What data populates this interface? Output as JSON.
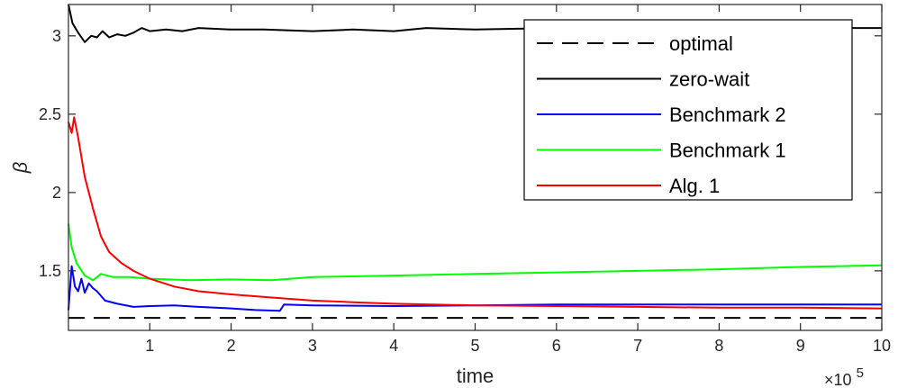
{
  "chart_data": {
    "type": "line",
    "xlabel": "time",
    "ylabel": "β",
    "x_multiplier_label": {
      "base": "×10",
      "exponent": "5"
    },
    "xlim": [
      0,
      10
    ],
    "ylim": [
      1.12,
      3.2
    ],
    "xticks": [
      "1",
      "2",
      "3",
      "4",
      "5",
      "6",
      "7",
      "8",
      "9",
      "10"
    ],
    "yticks": [
      "1.5",
      "2",
      "2.5",
      "3"
    ],
    "grid": false,
    "legend_position": "top-right",
    "series": [
      {
        "name": "optimal",
        "color": "#000000",
        "dash": true,
        "points": [
          [
            0,
            1.2
          ],
          [
            10,
            1.2
          ]
        ]
      },
      {
        "name": "zero-wait",
        "color": "#000000",
        "points": [
          [
            0,
            3.2
          ],
          [
            0.05,
            3.08
          ],
          [
            0.12,
            3.02
          ],
          [
            0.2,
            2.96
          ],
          [
            0.28,
            3.0
          ],
          [
            0.35,
            2.99
          ],
          [
            0.42,
            3.03
          ],
          [
            0.5,
            2.99
          ],
          [
            0.6,
            3.01
          ],
          [
            0.7,
            3.0
          ],
          [
            0.8,
            3.02
          ],
          [
            0.9,
            3.05
          ],
          [
            1.0,
            3.03
          ],
          [
            1.2,
            3.04
          ],
          [
            1.4,
            3.03
          ],
          [
            1.6,
            3.05
          ],
          [
            2.0,
            3.04
          ],
          [
            2.4,
            3.04
          ],
          [
            3.0,
            3.03
          ],
          [
            3.5,
            3.04
          ],
          [
            4.0,
            3.03
          ],
          [
            4.4,
            3.05
          ],
          [
            5.0,
            3.04
          ],
          [
            6.0,
            3.05
          ],
          [
            7.0,
            3.05
          ],
          [
            8.0,
            3.05
          ],
          [
            9.0,
            3.05
          ],
          [
            9.6,
            3.05
          ],
          [
            10,
            3.05
          ]
        ]
      },
      {
        "name": "Benchmark 2",
        "color": "#0000ff",
        "points": [
          [
            0,
            1.25
          ],
          [
            0.04,
            1.53
          ],
          [
            0.08,
            1.4
          ],
          [
            0.12,
            1.37
          ],
          [
            0.16,
            1.45
          ],
          [
            0.2,
            1.36
          ],
          [
            0.25,
            1.42
          ],
          [
            0.3,
            1.39
          ],
          [
            0.35,
            1.37
          ],
          [
            0.45,
            1.31
          ],
          [
            0.6,
            1.29
          ],
          [
            0.8,
            1.27
          ],
          [
            1.0,
            1.275
          ],
          [
            1.3,
            1.28
          ],
          [
            1.6,
            1.27
          ],
          [
            2.0,
            1.26
          ],
          [
            2.3,
            1.25
          ],
          [
            2.6,
            1.245
          ],
          [
            2.65,
            1.285
          ],
          [
            3.0,
            1.28
          ],
          [
            4.0,
            1.275
          ],
          [
            5.0,
            1.28
          ],
          [
            6.0,
            1.285
          ],
          [
            7.0,
            1.285
          ],
          [
            8.0,
            1.285
          ],
          [
            9.0,
            1.285
          ],
          [
            10,
            1.285
          ]
        ]
      },
      {
        "name": "Benchmark 1",
        "color": "#00ff00",
        "points": [
          [
            0,
            1.8
          ],
          [
            0.04,
            1.65
          ],
          [
            0.1,
            1.55
          ],
          [
            0.2,
            1.47
          ],
          [
            0.3,
            1.44
          ],
          [
            0.4,
            1.48
          ],
          [
            0.55,
            1.46
          ],
          [
            0.75,
            1.46
          ],
          [
            1.0,
            1.45
          ],
          [
            1.5,
            1.44
          ],
          [
            2.0,
            1.445
          ],
          [
            2.5,
            1.44
          ],
          [
            3.0,
            1.46
          ],
          [
            4.0,
            1.47
          ],
          [
            5.0,
            1.48
          ],
          [
            6.0,
            1.49
          ],
          [
            7.0,
            1.5
          ],
          [
            8.0,
            1.51
          ],
          [
            9.0,
            1.525
          ],
          [
            10,
            1.535
          ]
        ]
      },
      {
        "name": "Alg. 1",
        "color": "#ff0000",
        "points": [
          [
            0,
            2.45
          ],
          [
            0.04,
            2.38
          ],
          [
            0.07,
            2.48
          ],
          [
            0.12,
            2.35
          ],
          [
            0.2,
            2.1
          ],
          [
            0.3,
            1.9
          ],
          [
            0.4,
            1.72
          ],
          [
            0.5,
            1.62
          ],
          [
            0.65,
            1.55
          ],
          [
            0.8,
            1.5
          ],
          [
            1.0,
            1.45
          ],
          [
            1.3,
            1.4
          ],
          [
            1.6,
            1.37
          ],
          [
            2.0,
            1.35
          ],
          [
            2.5,
            1.33
          ],
          [
            3.0,
            1.31
          ],
          [
            3.5,
            1.3
          ],
          [
            4.0,
            1.29
          ],
          [
            5.0,
            1.28
          ],
          [
            6.0,
            1.275
          ],
          [
            7.0,
            1.27
          ],
          [
            8.0,
            1.265
          ],
          [
            9.0,
            1.265
          ],
          [
            10,
            1.26
          ]
        ]
      }
    ],
    "legend_order": [
      "optimal",
      "zero-wait",
      "Benchmark 2",
      "Benchmark 1",
      "Alg. 1"
    ]
  }
}
